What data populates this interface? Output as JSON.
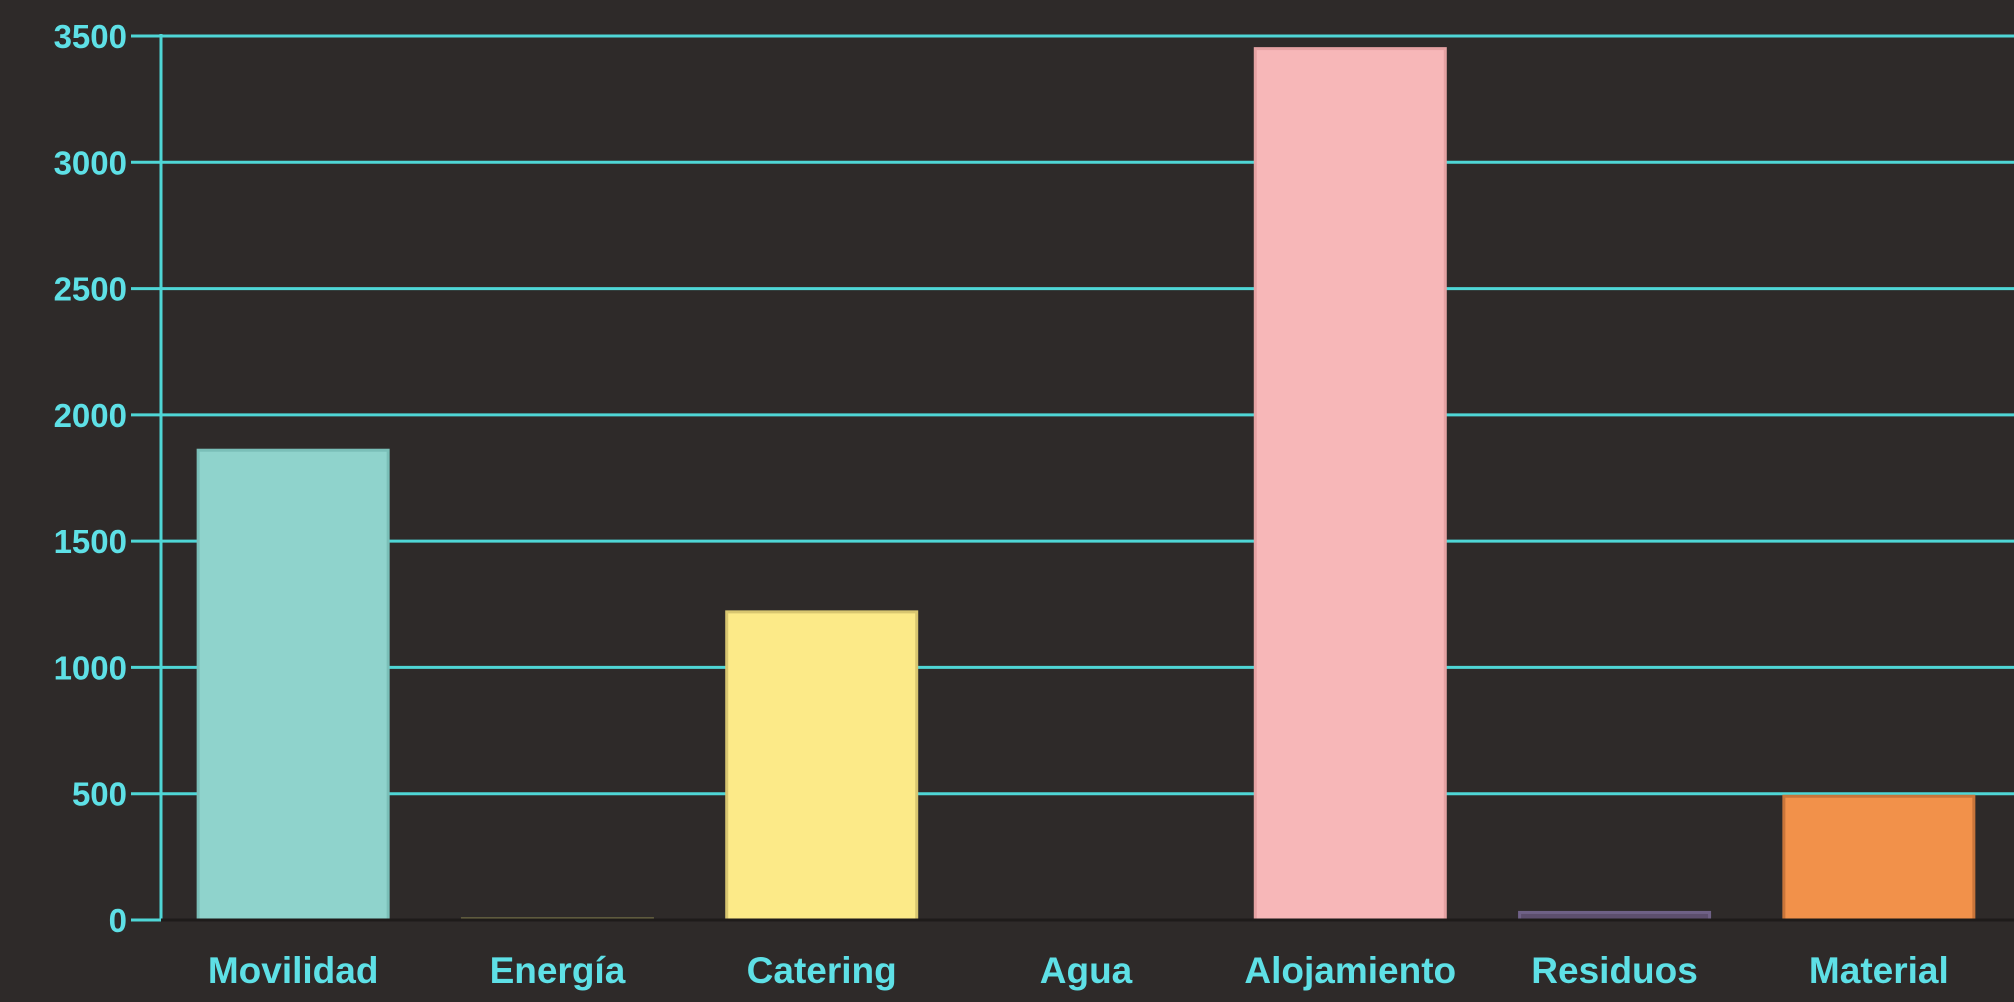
{
  "chart_data": {
    "type": "bar",
    "title": "",
    "xlabel": "",
    "ylabel": "",
    "categories": [
      "Movilidad",
      "Energía",
      "Catering",
      "Agua",
      "Alojamiento",
      "Residuos",
      "Material"
    ],
    "values": [
      1860,
      5,
      1220,
      0,
      3450,
      30,
      490
    ],
    "ylim": [
      0,
      3500
    ],
    "yticks": [
      0,
      500,
      1000,
      1500,
      2000,
      2500,
      3000,
      3500
    ],
    "grid": true,
    "legend": "none",
    "colors": {
      "background": "#2e2a29",
      "axis": "#4fd6d6",
      "tick_label": "#5ee0e6",
      "bars": [
        "#8fd3cc",
        "#5c5a3c",
        "#fcea88",
        "#4fa3d6",
        "#f7b7b8",
        "#5d4f6e",
        "#f2914a"
      ],
      "bar_borders": [
        "#7abfb8",
        "#6e6a44",
        "#d8c670",
        "#3f8ac0",
        "#e5a2a3",
        "#6f6187",
        "#c9753a"
      ]
    }
  }
}
